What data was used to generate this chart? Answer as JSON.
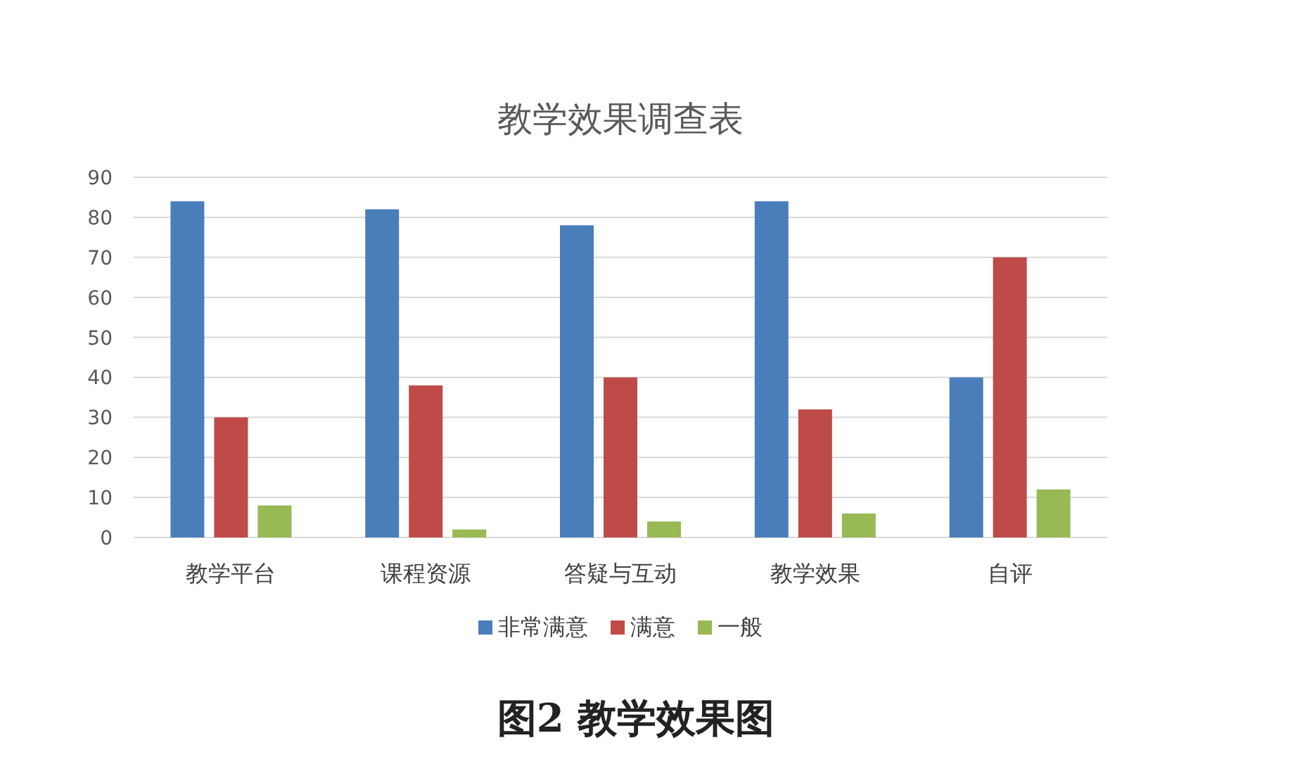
{
  "chart_data": {
    "type": "bar",
    "title": "教学效果调查表",
    "categories": [
      "教学平台",
      "课程资源",
      "答疑与互动",
      "教学效果",
      "自评"
    ],
    "series": [
      {
        "name": "非常满意",
        "color": "#4a7ebb",
        "values": [
          84,
          82,
          78,
          84,
          40
        ]
      },
      {
        "name": "满意",
        "color": "#be4b48",
        "values": [
          30,
          38,
          40,
          32,
          70
        ]
      },
      {
        "name": "一般",
        "color": "#98b954",
        "values": [
          8,
          2,
          4,
          6,
          12
        ]
      }
    ],
    "ylim": [
      0,
      90
    ],
    "yticks": [
      0,
      10,
      20,
      30,
      40,
      50,
      60,
      70,
      80,
      90
    ],
    "grid": "y",
    "legend": "bottom",
    "annotations": [
      "图2  教学效果图"
    ]
  }
}
